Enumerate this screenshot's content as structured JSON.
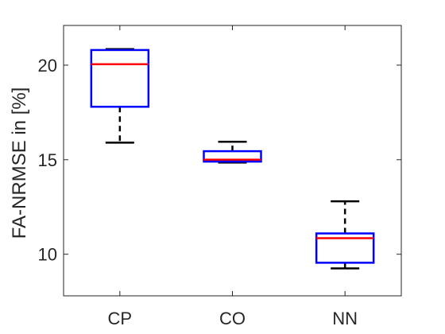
{
  "chart_data": {
    "type": "box",
    "title": "",
    "xlabel": "",
    "ylabel": "FA-NRMSE in [%]",
    "ylim": [
      7.8,
      22.1
    ],
    "yticks": [
      10,
      15,
      20
    ],
    "categories": [
      "CP",
      "CO",
      "NN"
    ],
    "boxes": [
      {
        "category": "CP",
        "whisker_low": 15.9,
        "q1": 17.8,
        "median": 20.05,
        "q3": 20.8,
        "whisker_high": 20.85
      },
      {
        "category": "CO",
        "whisker_low": 14.85,
        "q1": 14.9,
        "median": 15.0,
        "q3": 15.45,
        "whisker_high": 15.95
      },
      {
        "category": "NN",
        "whisker_low": 9.25,
        "q1": 9.55,
        "median": 10.85,
        "q3": 11.1,
        "whisker_high": 12.8
      }
    ],
    "grid": false,
    "colors": {
      "box": "#0000ff",
      "median": "#ff0000",
      "whisker": "#000000",
      "axis": "#262626"
    }
  }
}
